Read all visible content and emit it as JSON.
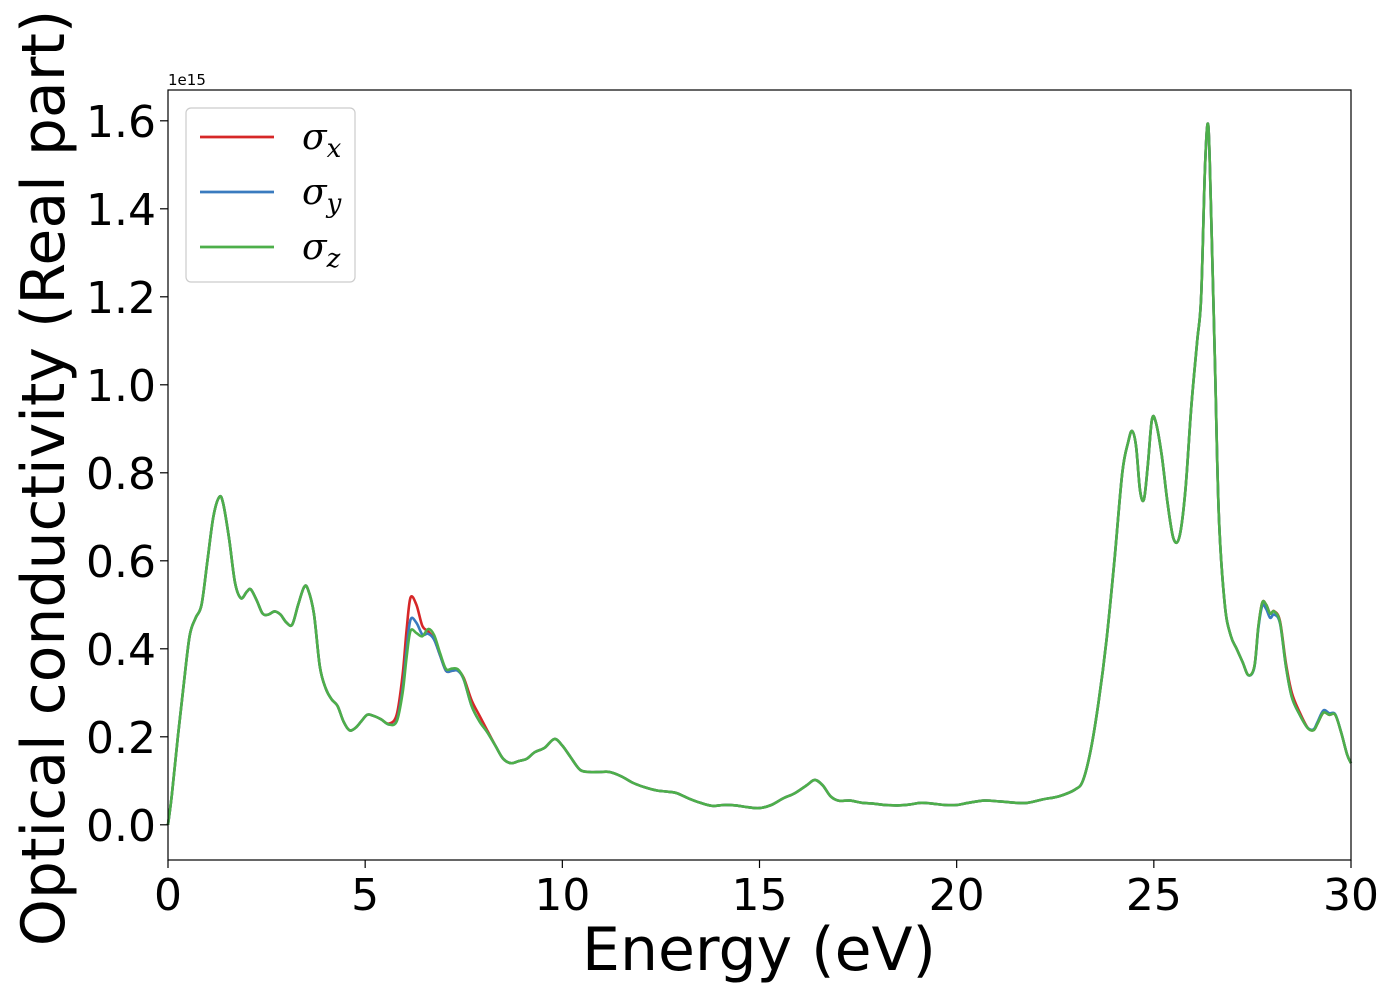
{
  "chart_data": {
    "type": "line",
    "xlabel": "Energy (eV)",
    "ylabel": "Optical conductivity (Real part)",
    "offset_label": "1e15",
    "multiplier": 1000000000000000.0,
    "xlim": [
      0,
      30
    ],
    "ylim": [
      -0.08,
      1.67
    ],
    "xticks": [
      0,
      5,
      10,
      15,
      20,
      25,
      30
    ],
    "xtick_labels": [
      "0",
      "5",
      "10",
      "15",
      "20",
      "25",
      "30"
    ],
    "yticks": [
      0.0,
      0.2,
      0.4,
      0.6,
      0.8,
      1.0,
      1.2,
      1.4,
      1.6
    ],
    "ytick_labels": [
      "0.0",
      "0.2",
      "0.4",
      "0.6",
      "0.8",
      "1.0",
      "1.2",
      "1.4",
      "1.6"
    ],
    "grid": false,
    "legend_position": "top-left",
    "legend": [
      {
        "symbol": "σ",
        "sub": "x",
        "color": "#d62728"
      },
      {
        "symbol": "σ",
        "sub": "y",
        "color": "#3a7bbf"
      },
      {
        "symbol": "σ",
        "sub": "z",
        "color": "#4daf4a"
      }
    ],
    "base": [
      [
        0,
        0.0
      ],
      [
        0.1,
        0.07
      ],
      [
        0.25,
        0.2
      ],
      [
        0.4,
        0.32
      ],
      [
        0.55,
        0.43
      ],
      [
        0.7,
        0.47
      ],
      [
        0.85,
        0.5
      ],
      [
        1.0,
        0.6
      ],
      [
        1.15,
        0.7
      ],
      [
        1.3,
        0.745
      ],
      [
        1.4,
        0.73
      ],
      [
        1.55,
        0.65
      ],
      [
        1.7,
        0.55
      ],
      [
        1.85,
        0.515
      ],
      [
        2.0,
        0.53
      ],
      [
        2.1,
        0.535
      ],
      [
        2.25,
        0.51
      ],
      [
        2.4,
        0.48
      ],
      [
        2.55,
        0.478
      ],
      [
        2.7,
        0.485
      ],
      [
        2.85,
        0.478
      ],
      [
        3.0,
        0.46
      ],
      [
        3.15,
        0.455
      ],
      [
        3.3,
        0.5
      ],
      [
        3.45,
        0.54
      ],
      [
        3.55,
        0.535
      ],
      [
        3.7,
        0.48
      ],
      [
        3.85,
        0.36
      ],
      [
        4.0,
        0.31
      ],
      [
        4.15,
        0.285
      ],
      [
        4.3,
        0.27
      ],
      [
        4.45,
        0.235
      ],
      [
        4.6,
        0.215
      ],
      [
        4.75,
        0.22
      ],
      [
        4.9,
        0.235
      ],
      [
        5.05,
        0.25
      ],
      [
        5.2,
        0.248
      ],
      [
        5.4,
        0.24
      ],
      [
        5.6,
        0.228
      ],
      [
        5.8,
        0.235
      ],
      [
        5.95,
        0.3
      ],
      [
        6.05,
        0.38
      ],
      [
        6.15,
        0.44
      ],
      [
        6.3,
        0.432
      ],
      [
        6.45,
        0.418
      ],
      [
        6.6,
        0.43
      ],
      [
        6.75,
        0.42
      ],
      [
        6.9,
        0.385
      ],
      [
        7.05,
        0.35
      ],
      [
        7.2,
        0.35
      ],
      [
        7.35,
        0.35
      ],
      [
        7.5,
        0.33
      ],
      [
        7.7,
        0.27
      ],
      [
        7.9,
        0.235
      ],
      [
        8.1,
        0.21
      ],
      [
        8.3,
        0.18
      ],
      [
        8.5,
        0.15
      ],
      [
        8.7,
        0.14
      ],
      [
        8.9,
        0.145
      ],
      [
        9.1,
        0.15
      ],
      [
        9.3,
        0.165
      ],
      [
        9.55,
        0.175
      ],
      [
        9.8,
        0.195
      ],
      [
        10.0,
        0.18
      ],
      [
        10.2,
        0.155
      ],
      [
        10.45,
        0.125
      ],
      [
        10.7,
        0.12
      ],
      [
        10.95,
        0.12
      ],
      [
        11.2,
        0.12
      ],
      [
        11.5,
        0.11
      ],
      [
        11.8,
        0.095
      ],
      [
        12.1,
        0.085
      ],
      [
        12.4,
        0.078
      ],
      [
        12.7,
        0.075
      ],
      [
        12.9,
        0.072
      ],
      [
        13.2,
        0.06
      ],
      [
        13.5,
        0.05
      ],
      [
        13.8,
        0.043
      ],
      [
        14.1,
        0.045
      ],
      [
        14.4,
        0.044
      ],
      [
        14.7,
        0.04
      ],
      [
        15.0,
        0.038
      ],
      [
        15.3,
        0.045
      ],
      [
        15.6,
        0.06
      ],
      [
        15.9,
        0.072
      ],
      [
        16.2,
        0.09
      ],
      [
        16.4,
        0.102
      ],
      [
        16.6,
        0.09
      ],
      [
        16.8,
        0.065
      ],
      [
        17.0,
        0.055
      ],
      [
        17.3,
        0.055
      ],
      [
        17.6,
        0.05
      ],
      [
        17.9,
        0.048
      ],
      [
        18.2,
        0.045
      ],
      [
        18.5,
        0.044
      ],
      [
        18.8,
        0.046
      ],
      [
        19.1,
        0.05
      ],
      [
        19.4,
        0.048
      ],
      [
        19.7,
        0.045
      ],
      [
        20.0,
        0.045
      ],
      [
        20.3,
        0.05
      ],
      [
        20.7,
        0.055
      ],
      [
        21.1,
        0.053
      ],
      [
        21.5,
        0.05
      ],
      [
        21.8,
        0.05
      ],
      [
        22.2,
        0.058
      ],
      [
        22.6,
        0.065
      ],
      [
        23.0,
        0.08
      ],
      [
        23.2,
        0.1
      ],
      [
        23.4,
        0.17
      ],
      [
        23.6,
        0.28
      ],
      [
        23.8,
        0.42
      ],
      [
        24.0,
        0.6
      ],
      [
        24.2,
        0.8
      ],
      [
        24.35,
        0.87
      ],
      [
        24.45,
        0.895
      ],
      [
        24.55,
        0.86
      ],
      [
        24.65,
        0.76
      ],
      [
        24.75,
        0.74
      ],
      [
        24.85,
        0.82
      ],
      [
        24.95,
        0.92
      ],
      [
        25.05,
        0.915
      ],
      [
        25.2,
        0.84
      ],
      [
        25.35,
        0.73
      ],
      [
        25.5,
        0.65
      ],
      [
        25.65,
        0.655
      ],
      [
        25.8,
        0.76
      ],
      [
        25.95,
        0.95
      ],
      [
        26.1,
        1.1
      ],
      [
        26.2,
        1.2
      ],
      [
        26.3,
        1.5
      ],
      [
        26.38,
        1.59
      ],
      [
        26.45,
        1.4
      ],
      [
        26.55,
        1.05
      ],
      [
        26.65,
        0.7
      ],
      [
        26.8,
        0.5
      ],
      [
        26.95,
        0.43
      ],
      [
        27.1,
        0.4
      ],
      [
        27.25,
        0.37
      ],
      [
        27.4,
        0.34
      ],
      [
        27.55,
        0.36
      ],
      [
        27.65,
        0.45
      ],
      [
        27.75,
        0.505
      ],
      [
        27.85,
        0.5
      ],
      [
        27.95,
        0.48
      ],
      [
        28.05,
        0.485
      ],
      [
        28.2,
        0.46
      ],
      [
        28.35,
        0.36
      ],
      [
        28.5,
        0.29
      ],
      [
        28.7,
        0.25
      ],
      [
        28.9,
        0.22
      ],
      [
        29.05,
        0.215
      ],
      [
        29.15,
        0.23
      ],
      [
        29.3,
        0.255
      ],
      [
        29.45,
        0.25
      ],
      [
        29.6,
        0.25
      ],
      [
        29.75,
        0.21
      ],
      [
        29.9,
        0.16
      ],
      [
        30.0,
        0.14
      ]
    ],
    "series_adjustments": {
      "x": [
        [
          6.0,
          0.02
        ],
        [
          6.2,
          0.05
        ],
        [
          6.3,
          0.02
        ],
        [
          7.8,
          0.015
        ],
        [
          28.5,
          0.01
        ]
      ],
      "y": [
        [
          6.2,
          0.02
        ],
        [
          6.3,
          0.01
        ],
        [
          27.9,
          -0.01
        ],
        [
          29.3,
          0.005
        ]
      ],
      "z": [
        [
          6.2,
          0.0
        ],
        [
          6.6,
          0.015
        ],
        [
          7.2,
          0.005
        ]
      ]
    }
  }
}
